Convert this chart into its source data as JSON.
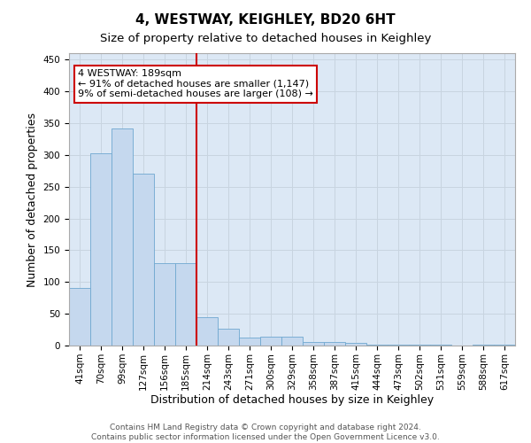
{
  "title": "4, WESTWAY, KEIGHLEY, BD20 6HT",
  "subtitle": "Size of property relative to detached houses in Keighley",
  "xlabel": "Distribution of detached houses by size in Keighley",
  "ylabel": "Number of detached properties",
  "categories": [
    "41sqm",
    "70sqm",
    "99sqm",
    "127sqm",
    "156sqm",
    "185sqm",
    "214sqm",
    "243sqm",
    "271sqm",
    "300sqm",
    "329sqm",
    "358sqm",
    "387sqm",
    "415sqm",
    "444sqm",
    "473sqm",
    "502sqm",
    "531sqm",
    "559sqm",
    "588sqm",
    "617sqm"
  ],
  "values": [
    90,
    302,
    341,
    271,
    130,
    130,
    44,
    27,
    13,
    14,
    14,
    6,
    5,
    4,
    2,
    1,
    1,
    1,
    0,
    1,
    1
  ],
  "bar_color": "#c5d8ee",
  "bar_edge_color": "#6fa8d0",
  "vline_index": 5,
  "vline_color": "#cc0000",
  "annotation_text_line1": "4 WESTWAY: 189sqm",
  "annotation_text_line2": "← 91% of detached houses are smaller (1,147)",
  "annotation_text_line3": "9% of semi-detached houses are larger (108) →",
  "box_edge_color": "#cc0000",
  "footer_line1": "Contains HM Land Registry data © Crown copyright and database right 2024.",
  "footer_line2": "Contains public sector information licensed under the Open Government Licence v3.0.",
  "ylim": [
    0,
    460
  ],
  "yticks": [
    0,
    50,
    100,
    150,
    200,
    250,
    300,
    350,
    400,
    450
  ],
  "grid_color": "#c8d4e0",
  "bg_color": "#dce8f5",
  "title_fontsize": 11,
  "subtitle_fontsize": 9.5,
  "axis_label_fontsize": 9,
  "tick_fontsize": 7.5,
  "footer_fontsize": 6.5,
  "annotation_fontsize": 8
}
